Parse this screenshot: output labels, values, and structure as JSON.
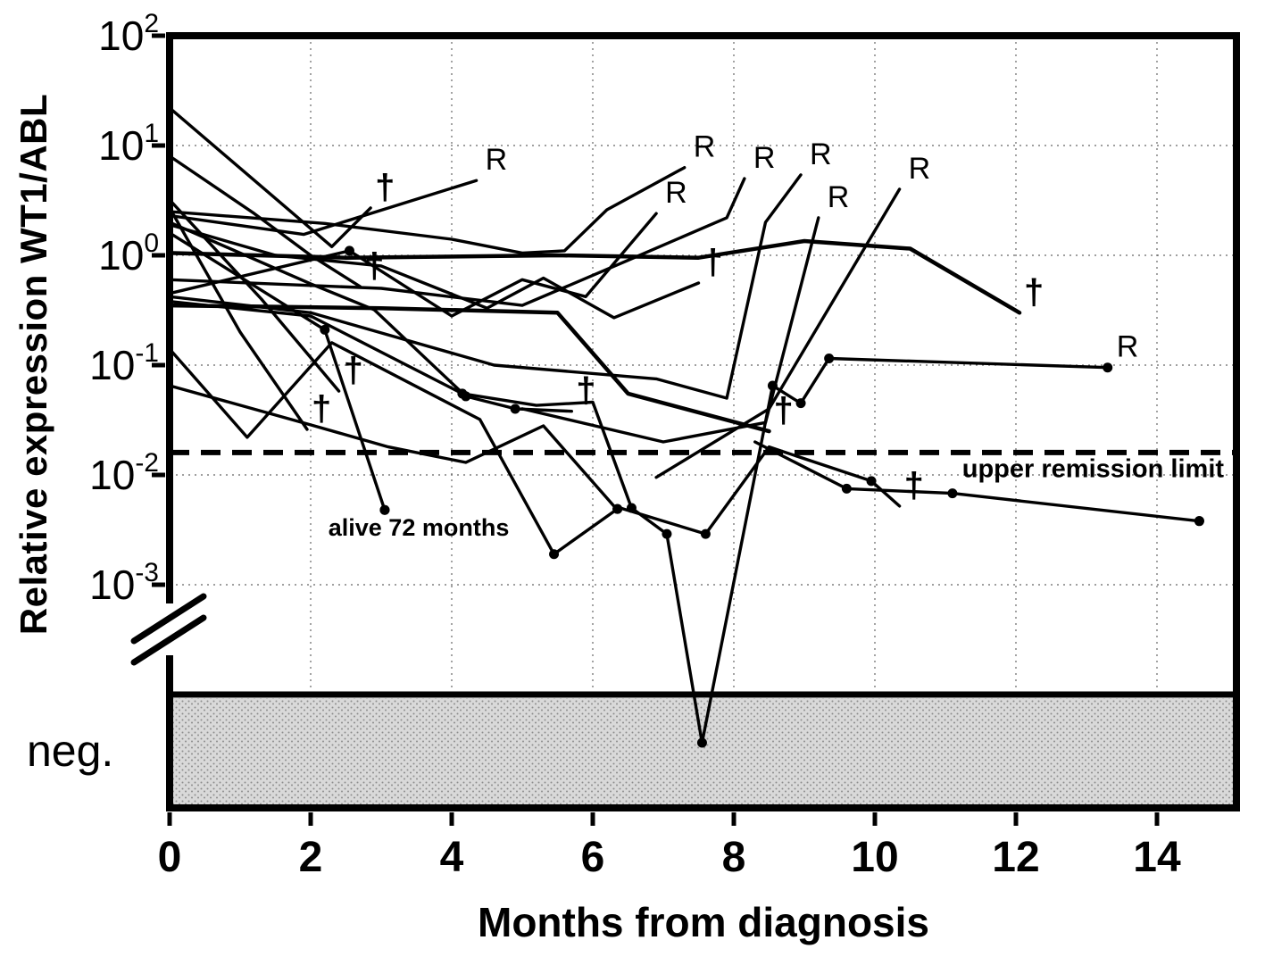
{
  "chart_data": {
    "type": "line",
    "title": "",
    "x_axis": {
      "label": "Months from diagnosis",
      "ticks": [
        0,
        2,
        4,
        6,
        8,
        10,
        12,
        14
      ],
      "minor_step": 0.5,
      "range": [
        0,
        15.1
      ]
    },
    "y_axis": {
      "label": "Relative expression WT1/ABL",
      "scale": "log",
      "decades": [
        2,
        1,
        0,
        -1,
        -2,
        -3
      ],
      "neg_label": "neg.",
      "has_axis_break": true
    },
    "threshold": {
      "value": 0.016,
      "label": "upper remission limit",
      "style": "dashed"
    },
    "markers": {
      "relapse": "R",
      "death": "†"
    },
    "series": [
      {
        "id": "p01",
        "points": [
          [
            0,
            22
          ],
          [
            2.3,
            1.2
          ],
          [
            2.85,
            2.7
          ]
        ],
        "end": "dagger"
      },
      {
        "id": "p02",
        "points": [
          [
            0,
            8
          ],
          [
            1.2,
            2.4
          ],
          [
            2.0,
            1.0
          ],
          [
            2.7,
            0.52
          ]
        ],
        "end": "dagger"
      },
      {
        "id": "p03",
        "points": [
          [
            0,
            3.2
          ],
          [
            1.3,
            0.4
          ],
          [
            2.4,
            0.058
          ]
        ],
        "end": "dagger"
      },
      {
        "id": "p04",
        "points": [
          [
            0,
            2.7
          ],
          [
            1.0,
            0.2
          ],
          [
            1.95,
            0.026
          ]
        ],
        "end": "dagger"
      },
      {
        "id": "p05",
        "points": [
          [
            0,
            2.3
          ],
          [
            1.9,
            1.55
          ],
          [
            4.35,
            4.8
          ]
        ],
        "end": "R"
      },
      {
        "id": "p06",
        "points": [
          [
            0,
            0.45
          ],
          [
            2.55,
            1.1
          ],
          [
            4.0,
            0.28
          ],
          [
            5.0,
            0.6
          ],
          [
            5.9,
            0.42
          ],
          [
            6.9,
            2.4
          ]
        ],
        "end": "R",
        "dots": [
          1
        ]
      },
      {
        "id": "p07",
        "points": [
          [
            0,
            2.0
          ],
          [
            2.0,
            0.55
          ],
          [
            2.9,
            0.32
          ],
          [
            4.2,
            0.052
          ],
          [
            4.9,
            0.04
          ],
          [
            5.7,
            0.038
          ]
        ],
        "end": "dagger",
        "dots": [
          3,
          4
        ]
      },
      {
        "id": "p08",
        "points": [
          [
            0,
            1.9
          ],
          [
            1.5,
            1.0
          ],
          [
            3.0,
            0.8
          ],
          [
            4.5,
            0.33
          ],
          [
            5.3,
            0.62
          ],
          [
            6.3,
            0.27
          ],
          [
            7.1,
            0.44
          ],
          [
            7.5,
            0.56
          ]
        ],
        "end": "dagger"
      },
      {
        "id": "p09",
        "points": [
          [
            0,
            1.6
          ],
          [
            2.2,
            0.21
          ],
          [
            3.05,
            0.0048
          ]
        ],
        "end": "dot",
        "dots": [
          1,
          2
        ]
      },
      {
        "id": "p10",
        "points": [
          [
            0,
            1.05
          ],
          [
            2.5,
            0.95
          ],
          [
            5.5,
            1.0
          ],
          [
            7.5,
            0.95
          ],
          [
            9.0,
            1.35
          ],
          [
            10.5,
            1.15
          ],
          [
            12.05,
            0.3
          ]
        ],
        "end": "dagger",
        "width": 4.5
      },
      {
        "id": "p11",
        "points": [
          [
            0,
            2.5
          ],
          [
            2.2,
            1.95
          ],
          [
            4.0,
            1.4
          ],
          [
            5.0,
            1.05
          ],
          [
            5.6,
            1.1
          ],
          [
            6.2,
            2.6
          ],
          [
            7.3,
            6.3
          ]
        ],
        "end": "R"
      },
      {
        "id": "p12",
        "points": [
          [
            0,
            0.6
          ],
          [
            3.0,
            0.5
          ],
          [
            5.0,
            0.35
          ],
          [
            6.5,
            0.9
          ],
          [
            7.9,
            2.2
          ],
          [
            8.15,
            5.0
          ]
        ],
        "end": "R"
      },
      {
        "id": "p13",
        "points": [
          [
            0,
            0.42
          ],
          [
            2.0,
            0.3
          ],
          [
            4.6,
            0.1
          ],
          [
            6.9,
            0.075
          ],
          [
            7.9,
            0.05
          ],
          [
            8.45,
            2.0
          ],
          [
            8.95,
            5.4
          ]
        ],
        "end": "R"
      },
      {
        "id": "p14",
        "points": [
          [
            0,
            0.38
          ],
          [
            2.0,
            0.28
          ],
          [
            4.15,
            0.055
          ],
          [
            5.2,
            0.043
          ],
          [
            6.0,
            0.046
          ],
          [
            6.55,
            0.005
          ],
          [
            7.05,
            0.0029
          ],
          [
            7.55,
            null
          ],
          [
            8.55,
            0.065
          ],
          [
            8.95,
            0.045
          ],
          [
            9.35,
            0.115
          ],
          [
            13.3,
            0.095
          ]
        ],
        "end": "R",
        "dots": [
          2,
          5,
          6,
          7,
          8,
          9,
          10,
          11
        ]
      },
      {
        "id": "p15",
        "points": [
          [
            0,
            0.14
          ],
          [
            1.1,
            0.022
          ],
          [
            2.3,
            0.16
          ],
          [
            4.4,
            0.032
          ],
          [
            5.45,
            0.0019
          ],
          [
            6.35,
            0.0049
          ]
        ],
        "end": "dot",
        "dots": [
          4,
          5
        ]
      },
      {
        "id": "p16",
        "points": [
          [
            0,
            0.065
          ],
          [
            2.05,
            0.028
          ],
          [
            3.1,
            0.018
          ],
          [
            4.2,
            0.013
          ],
          [
            5.3,
            0.028
          ],
          [
            6.3,
            0.0052
          ],
          [
            7.6,
            0.0029
          ],
          [
            8.5,
            0.018
          ],
          [
            9.95,
            0.0088
          ],
          [
            10.35,
            0.0052
          ]
        ],
        "end": "dagger",
        "dots": [
          6,
          8
        ]
      },
      {
        "id": "p17",
        "points": [
          [
            0,
            0.35
          ],
          [
            3.0,
            0.33
          ],
          [
            5.5,
            0.3
          ],
          [
            6.5,
            0.055
          ],
          [
            8.5,
            0.025
          ]
        ],
        "end": "dagger",
        "width": 4.5
      },
      {
        "id": "p18",
        "points": [
          [
            6.9,
            0.0095
          ],
          [
            8.5,
            0.04
          ],
          [
            10.35,
            4.0
          ]
        ],
        "end": "R"
      },
      {
        "id": "p19",
        "points": [
          [
            8.3,
            0.02
          ],
          [
            9.6,
            0.0075
          ],
          [
            11.1,
            0.0068
          ],
          [
            14.6,
            0.0038
          ]
        ],
        "end": "dot",
        "dots": [
          1,
          2,
          3
        ]
      },
      {
        "id": "p20",
        "points": [
          [
            5.0,
            0.04
          ],
          [
            7.0,
            0.02
          ],
          [
            8.45,
            0.03
          ],
          [
            9.2,
            2.2
          ]
        ],
        "end": "R"
      }
    ],
    "annotations": [
      {
        "id": "alive-72-months",
        "text": "alive 72 months",
        "x": 2.25,
        "y": 0.0028,
        "anchor": "start",
        "size": 27,
        "bold": true
      },
      {
        "id": "upper-remission-limit",
        "text": "upper remission limit",
        "x": 14.95,
        "y": 0.0095,
        "anchor": "end",
        "size": 29,
        "bold": true
      }
    ]
  }
}
